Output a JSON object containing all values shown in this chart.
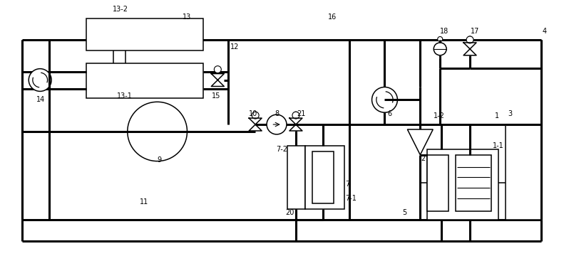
{
  "bg": "#ffffff",
  "lc": "#000000",
  "tlw": 2.2,
  "nlw": 1.1,
  "fw": 7.91,
  "fh": 3.6,
  "fs": 7.0
}
